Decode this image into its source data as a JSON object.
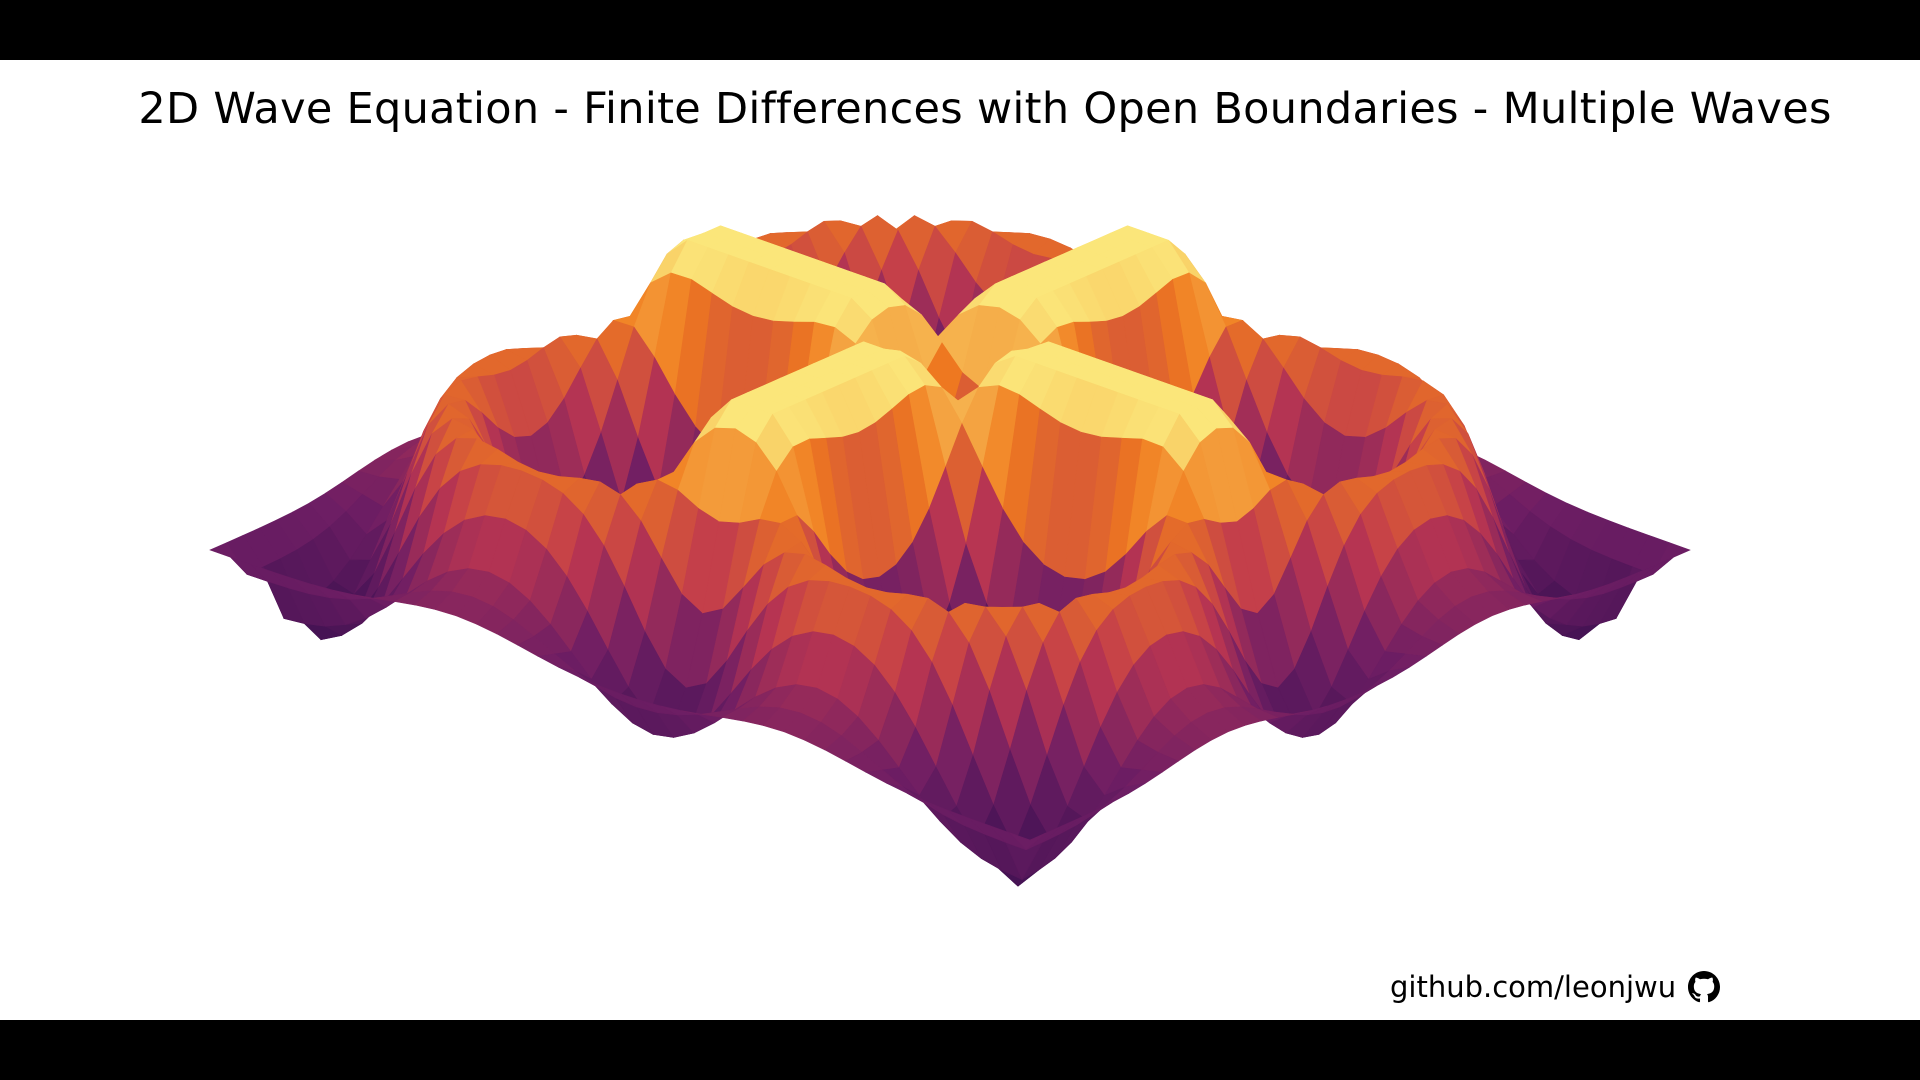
{
  "chart_data": {
    "type": "surface3d",
    "title": "2D Wave Equation - Finite Differences with Open Boundaries - Multiple Waves",
    "colormap": "inferno",
    "axes_visible": false,
    "grid": false,
    "wave_sources": 4,
    "grid_cells_per_side": 41,
    "z_range": [
      -1,
      1
    ]
  },
  "footer": {
    "credit_text": "github.com/leonjwu",
    "icon": "github-icon"
  },
  "colors": {
    "background": "#ffffff",
    "letterbox": "#000000",
    "colormap_low": "#2c0c4a",
    "colormap_mid": "#8b2a63",
    "colormap_high": "#f07b1e",
    "colormap_peak": "#fbe67a"
  }
}
